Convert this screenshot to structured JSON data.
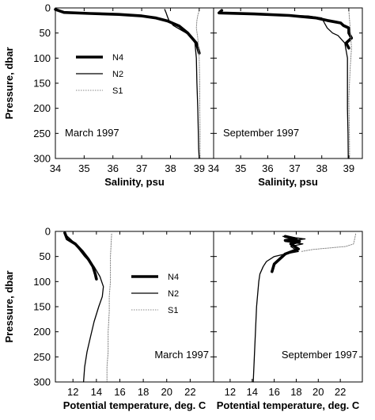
{
  "chart_data": [
    {
      "type": "line",
      "panel_label": "March 1997",
      "xlabel": "Salinity, psu",
      "ylabel": "Pressure, dbar",
      "xlim": [
        34,
        39.5
      ],
      "ylim": [
        300,
        0
      ],
      "xticks": [
        "34",
        "35",
        "36",
        "37",
        "38",
        "39"
      ],
      "xtick_values": [
        34,
        35,
        36,
        37,
        38,
        39
      ],
      "yticks": [
        "0",
        "50",
        "100",
        "150",
        "200",
        "250",
        "300"
      ],
      "ytick_values": [
        0,
        50,
        100,
        150,
        200,
        250,
        300
      ],
      "legend": {
        "position": "center-left",
        "entries": [
          "N4",
          "N2",
          "S1"
        ]
      },
      "series": [
        {
          "name": "N4",
          "style": "thick",
          "x": [
            34.0,
            34.3,
            35.2,
            36.2,
            37.0,
            37.5,
            37.9,
            38.3,
            38.6,
            38.9,
            39.0
          ],
          "y": [
            3,
            9,
            11,
            13,
            16,
            20,
            26,
            36,
            50,
            70,
            90
          ]
        },
        {
          "name": "N2",
          "style": "thin",
          "x": [
            37.8,
            37.85,
            37.9,
            37.95,
            38.1,
            38.4,
            38.7,
            38.85,
            38.9,
            38.92,
            38.95,
            38.97,
            38.98,
            39.0
          ],
          "y": [
            3,
            10,
            18,
            25,
            35,
            45,
            55,
            70,
            100,
            150,
            200,
            250,
            280,
            300
          ]
        },
        {
          "name": "S1",
          "style": "dotted",
          "x": [
            39.0,
            38.95,
            38.92,
            38.9,
            38.95,
            39.0,
            39.02,
            39.02,
            39.03,
            39.03
          ],
          "y": [
            5,
            15,
            25,
            40,
            60,
            100,
            150,
            200,
            250,
            300
          ]
        }
      ]
    },
    {
      "type": "line",
      "panel_label": "September 1997",
      "xlabel": "Salinity, psu",
      "ylabel": "",
      "xlim": [
        34,
        39.5
      ],
      "ylim": [
        300,
        0
      ],
      "xticks": [
        "34",
        "35",
        "36",
        "37",
        "38",
        "39"
      ],
      "xtick_values": [
        34,
        35,
        36,
        37,
        38,
        39
      ],
      "yticks": [],
      "ytick_values": [
        0,
        50,
        100,
        150,
        200,
        250,
        300
      ],
      "series": [
        {
          "name": "N4",
          "style": "thick",
          "x": [
            34.3,
            34.2,
            35.5,
            36.8,
            37.8,
            38.2,
            38.5,
            38.7,
            38.8,
            39.0,
            39.0,
            39.1,
            38.9,
            39.0
          ],
          "y": [
            5,
            10,
            12,
            15,
            20,
            25,
            28,
            30,
            35,
            40,
            50,
            60,
            70,
            80
          ]
        },
        {
          "name": "N2",
          "style": "thin",
          "x": [
            34.3,
            36.0,
            37.5,
            38.0,
            38.1,
            38.2,
            38.4,
            38.6,
            38.85,
            38.9,
            38.95,
            38.95,
            38.95,
            38.97,
            38.98
          ],
          "y": [
            10,
            14,
            16,
            20,
            30,
            40,
            50,
            55,
            70,
            85,
            100,
            150,
            200,
            250,
            300
          ]
        },
        {
          "name": "S1",
          "style": "dotted",
          "x": [
            39.0,
            39.05,
            39.1,
            39.05,
            39.0,
            39.02,
            39.03
          ],
          "y": [
            5,
            40,
            80,
            120,
            180,
            240,
            300
          ]
        }
      ]
    },
    {
      "type": "line",
      "panel_label": "March 1997",
      "xlabel": "Potential temperature, deg. C",
      "ylabel": "Pressure, dbar",
      "xlim": [
        10.5,
        24
      ],
      "ylim": [
        300,
        0
      ],
      "xticks": [
        "12",
        "14",
        "16",
        "18",
        "20",
        "22"
      ],
      "xtick_values": [
        12,
        14,
        16,
        18,
        20,
        22
      ],
      "yticks": [
        "0",
        "50",
        "100",
        "150",
        "200",
        "250",
        "300"
      ],
      "ytick_values": [
        0,
        50,
        100,
        150,
        200,
        250,
        300
      ],
      "legend": {
        "position": "center",
        "entries": [
          "N4",
          "N2",
          "S1"
        ]
      },
      "series": [
        {
          "name": "N4",
          "style": "thick",
          "x": [
            11.3,
            11.5,
            12.2,
            12.8,
            13.3,
            13.7,
            13.9,
            14.0
          ],
          "y": [
            3,
            15,
            25,
            40,
            55,
            70,
            85,
            95
          ]
        },
        {
          "name": "N2",
          "style": "thin",
          "x": [
            11.3,
            12.0,
            12.5,
            13.0,
            13.8,
            14.3,
            14.6,
            14.5,
            14.2,
            13.8,
            13.5,
            13.2,
            13.0,
            12.9
          ],
          "y": [
            5,
            20,
            35,
            50,
            70,
            90,
            110,
            130,
            150,
            180,
            210,
            240,
            270,
            300
          ]
        },
        {
          "name": "S1",
          "style": "dotted",
          "x": [
            15.3,
            15.2,
            15.2,
            15.1,
            15.1,
            15.0,
            15.0,
            14.9,
            14.9
          ],
          "y": [
            5,
            50,
            100,
            130,
            160,
            200,
            240,
            270,
            300
          ]
        }
      ]
    },
    {
      "type": "line",
      "panel_label": "September 1997",
      "xlabel": "Potential temperature, deg. C",
      "ylabel": "",
      "xlim": [
        10.5,
        24
      ],
      "ylim": [
        300,
        0
      ],
      "xticks": [
        "12",
        "14",
        "16",
        "18",
        "20",
        "22"
      ],
      "xtick_values": [
        12,
        14,
        16,
        18,
        20,
        22
      ],
      "yticks": [],
      "ytick_values": [
        0,
        50,
        100,
        150,
        200,
        250,
        300
      ],
      "series": [
        {
          "name": "N4",
          "style": "thick",
          "x": [
            17.0,
            18.0,
            17.0,
            18.3,
            17.5,
            18.2,
            17.0,
            16.5,
            16.0,
            15.8
          ],
          "y": [
            10,
            15,
            18,
            20,
            25,
            35,
            45,
            55,
            65,
            80
          ]
        },
        {
          "name": "N2",
          "style": "thin",
          "x": [
            16.8,
            18.8,
            17.0,
            18.6,
            17.5,
            18.2,
            17.0,
            16.0,
            15.3,
            15.0,
            14.7,
            14.6,
            14.4,
            14.3,
            14.2,
            14.1
          ],
          "y": [
            10,
            15,
            20,
            25,
            30,
            40,
            45,
            50,
            60,
            70,
            85,
            100,
            150,
            200,
            250,
            300
          ]
        },
        {
          "name": "S1",
          "style": "dotted",
          "x": [
            23.4,
            23.3,
            23.2,
            22.5,
            21.0,
            19.5,
            18.5
          ],
          "y": [
            5,
            15,
            25,
            30,
            33,
            36,
            40
          ]
        }
      ]
    }
  ]
}
